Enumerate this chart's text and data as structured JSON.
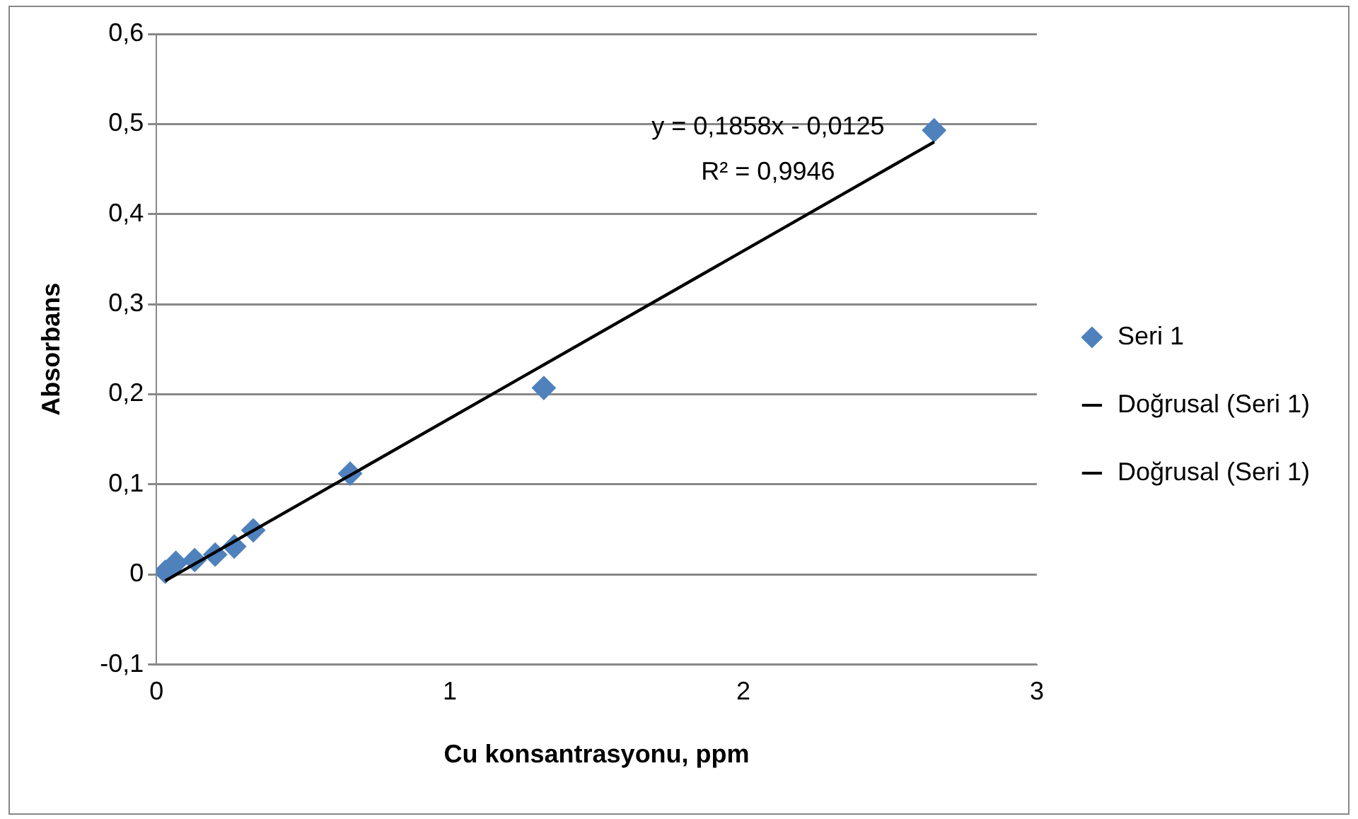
{
  "chart_data": {
    "type": "scatter",
    "xlabel": "Cu konsantrasyonu, ppm",
    "ylabel": "Absorbans",
    "xlim": [
      0,
      3
    ],
    "xticks": [
      0,
      1,
      2,
      3
    ],
    "ylim": [
      -0.1,
      0.6
    ],
    "yticks": [
      {
        "value": -0.1,
        "label": "-0,1"
      },
      {
        "value": 0,
        "label": "0"
      },
      {
        "value": 0.1,
        "label": "0,1"
      },
      {
        "value": 0.2,
        "label": "0,2"
      },
      {
        "value": 0.3,
        "label": "0,3"
      },
      {
        "value": 0.4,
        "label": "0,4"
      },
      {
        "value": 0.5,
        "label": "0,5"
      },
      {
        "value": 0.6,
        "label": "0,6"
      }
    ],
    "grid": "y",
    "legend": "right",
    "marker": "diamond",
    "series": [
      {
        "name": "Seri 1",
        "color": "#4f81bd",
        "x": [
          0.03,
          0.066,
          0.13,
          0.2,
          0.265,
          0.33,
          0.66,
          1.32,
          2.65
        ],
        "values": [
          0.003,
          0.013,
          0.016,
          0.022,
          0.031,
          0.049,
          0.112,
          0.207,
          0.493
        ]
      },
      {
        "name": "Doğrusal (Seri 1)",
        "type": "line",
        "marker": "none",
        "color": "#000000",
        "x": [
          0.03,
          2.65
        ],
        "values": [
          -0.007,
          0.48
        ]
      },
      {
        "name": "Doğrusal (Seri 1)",
        "type": "line",
        "marker": "none",
        "color": "#000000",
        "x": [
          0.03,
          2.65
        ],
        "values": [
          -0.007,
          0.48
        ]
      }
    ],
    "annotations": [
      "y = 0,1858x - 0,0125",
      "R² = 0,9946"
    ]
  }
}
